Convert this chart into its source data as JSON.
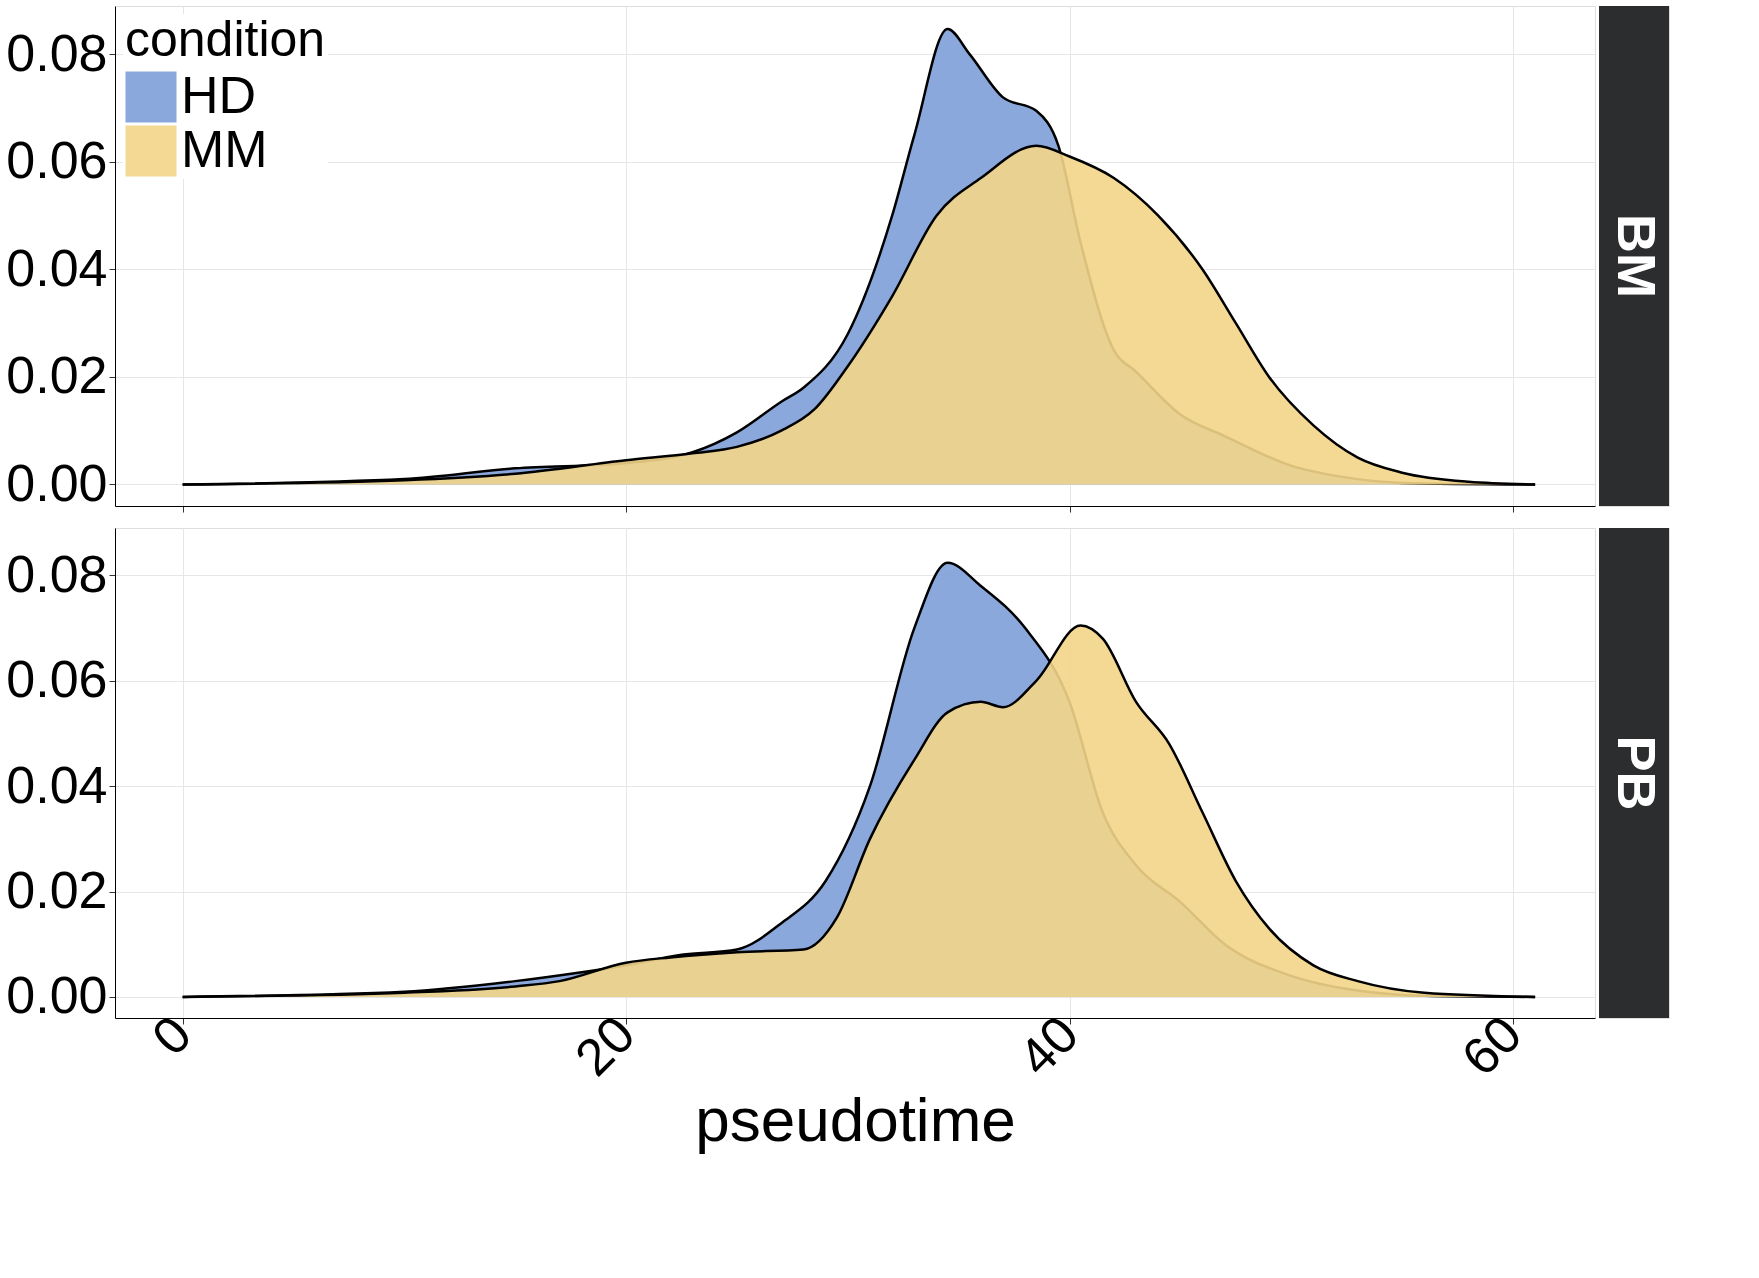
{
  "chart_data": [
    {
      "type": "area",
      "title": "BM",
      "legend_title": "condition",
      "legend": "top left",
      "grid": true,
      "tick_labels": "y",
      "xlim": [
        -3.05,
        63.7
      ],
      "xticks": [
        0,
        20,
        40,
        60
      ],
      "ylim": [
        -0.004,
        0.089
      ],
      "yticks": [
        {
          "value": 0,
          "label": "0.00"
        },
        {
          "value": 0.02,
          "label": "0.02"
        },
        {
          "value": 0.04,
          "label": "0.04"
        },
        {
          "value": 0.06,
          "label": "0.06"
        },
        {
          "value": 0.08,
          "label": "0.08"
        }
      ],
      "series": [
        {
          "name": "HD",
          "color": "#7d9fd8",
          "x": [
            0,
            10,
            15,
            20,
            23,
            25,
            27,
            28,
            30,
            32,
            33,
            34.5,
            35.5,
            37,
            38.5,
            39.5,
            40.5,
            42,
            43,
            45,
            47,
            50,
            53,
            55,
            61
          ],
          "values": [
            0,
            0.001,
            0.003,
            0.004,
            0.006,
            0.0097,
            0.0154,
            0.018,
            0.028,
            0.05,
            0.065,
            0.0847,
            0.08,
            0.072,
            0.0695,
            0.063,
            0.045,
            0.025,
            0.021,
            0.013,
            0.009,
            0.0035,
            0.001,
            0.0003,
            0
          ]
        },
        {
          "name": "MM",
          "color": "#f3d588",
          "x": [
            0,
            10,
            15,
            20,
            23,
            25,
            27,
            28.5,
            30,
            32,
            34,
            36,
            38.5,
            40,
            42,
            44,
            46,
            47.5,
            49,
            51,
            53,
            55,
            58,
            61
          ],
          "values": [
            0,
            0.0008,
            0.002,
            0.0045,
            0.0058,
            0.007,
            0.01,
            0.014,
            0.022,
            0.035,
            0.05,
            0.057,
            0.063,
            0.061,
            0.057,
            0.05,
            0.04,
            0.03,
            0.02,
            0.011,
            0.005,
            0.0022,
            0.0005,
            0
          ]
        }
      ]
    },
    {
      "type": "area",
      "title": "PB",
      "xlabel": "pseudotime",
      "legend": false,
      "grid": true,
      "xlim": [
        -3.05,
        63.7
      ],
      "xticks": [
        0,
        20,
        40,
        60
      ],
      "ylim": [
        -0.004,
        0.089
      ],
      "yticks": [
        {
          "value": 0,
          "label": "0.00"
        },
        {
          "value": 0.02,
          "label": "0.02"
        },
        {
          "value": 0.04,
          "label": "0.04"
        },
        {
          "value": 0.06,
          "label": "0.06"
        },
        {
          "value": 0.08,
          "label": "0.08"
        }
      ],
      "series": [
        {
          "color": "#7d9fd8",
          "x": [
            0,
            10,
            15,
            20,
            22.5,
            25,
            27,
            29,
            31,
            33,
            34.5,
            36,
            38,
            40,
            41.5,
            43,
            45,
            47,
            50,
            53,
            56,
            61
          ],
          "values": [
            0,
            0.001,
            0.003,
            0.006,
            0.008,
            0.009,
            0.014,
            0.022,
            0.04,
            0.07,
            0.0824,
            0.078,
            0.07,
            0.056,
            0.035,
            0.025,
            0.018,
            0.01,
            0.004,
            0.0012,
            0.0002,
            0
          ]
        },
        {
          "color": "#f3d588",
          "x": [
            0,
            10,
            15,
            17,
            20,
            22,
            25,
            28,
            29.5,
            31,
            33,
            34.5,
            36,
            37,
            38.5,
            40.5,
            41.5,
            43,
            44.5,
            46,
            47.5,
            49,
            51,
            53,
            56,
            61
          ],
          "values": [
            0,
            0.0008,
            0.002,
            0.003,
            0.0065,
            0.0075,
            0.0085,
            0.009,
            0.015,
            0.03,
            0.045,
            0.054,
            0.056,
            0.055,
            0.06,
            0.0705,
            0.068,
            0.056,
            0.048,
            0.035,
            0.022,
            0.013,
            0.006,
            0.003,
            0.0008,
            0
          ]
        }
      ]
    }
  ]
}
